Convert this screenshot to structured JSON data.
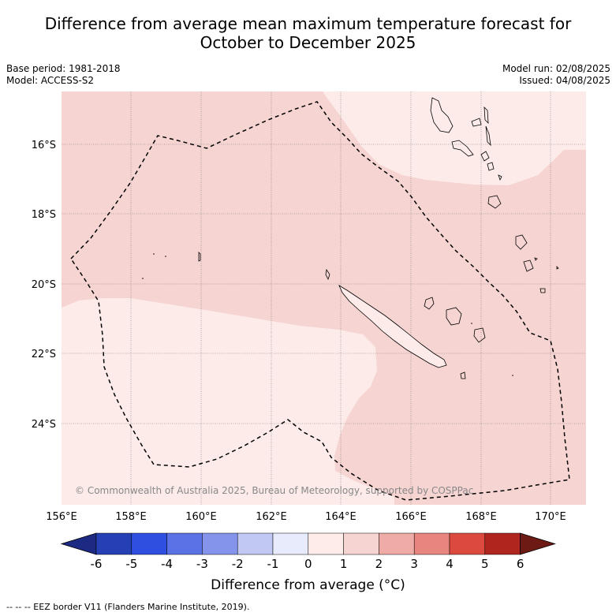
{
  "title_line1": "Difference from average mean maximum temperature forecast for",
  "title_line2": "October to December 2025",
  "meta": {
    "base_period": "Base period: 1981-2018",
    "model": "Model: ACCESS-S2",
    "model_run": "Model run: 02/08/2025",
    "issued": "Issued: 04/08/2025"
  },
  "map": {
    "lon_labels": [
      "156°E",
      "158°E",
      "160°E",
      "162°E",
      "164°E",
      "166°E",
      "168°E",
      "170°E"
    ],
    "lat_labels": [
      "16°S",
      "18°S",
      "20°S",
      "22°S",
      "24°S"
    ],
    "copyright": "© Commonwealth of Australia 2025, Bureau of Meteorology, supported by COSPPac"
  },
  "colorbar": {
    "ticks": [
      "-6",
      "-5",
      "-4",
      "-3",
      "-2",
      "-1",
      "0",
      "1",
      "2",
      "3",
      "4",
      "5",
      "6"
    ],
    "colors": [
      "#1c2a83",
      "#2440b4",
      "#2f4fe0",
      "#5a72e6",
      "#8494ea",
      "#c0c8f3",
      "#e8ebfb",
      "#fdecea",
      "#f6d4d2",
      "#efaca7",
      "#e8857e",
      "#dc4a3f",
      "#b0261f",
      "#6e1a14"
    ],
    "title": "Difference from average (°C)"
  },
  "footnote": "--  --  -- EEZ border V11 (Flanders Marine Institute, 2019)."
}
